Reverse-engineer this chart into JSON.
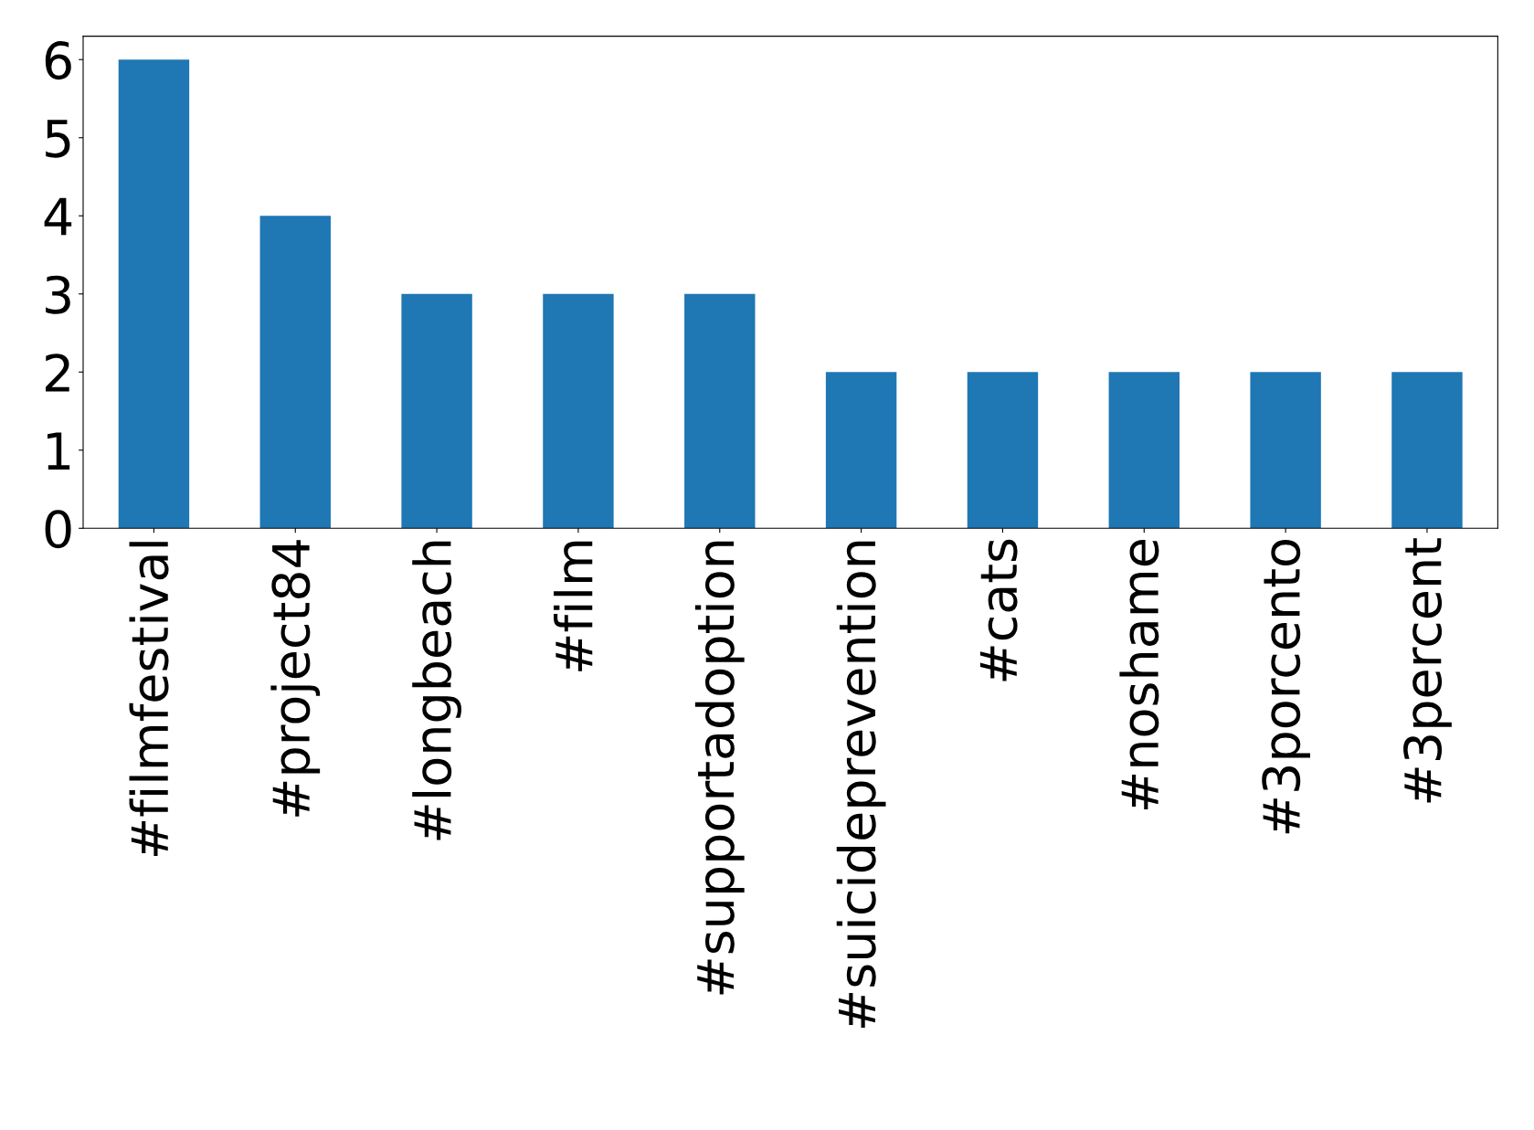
{
  "chart_data": {
    "type": "bar",
    "categories": [
      "#filmfestival",
      "#project84",
      "#longbeach",
      "#film",
      "#supportadoption",
      "#suicideprevention",
      "#cats",
      "#noshame",
      "#3porcento",
      "#3percent"
    ],
    "values": [
      6,
      4,
      3,
      3,
      3,
      2,
      2,
      2,
      2,
      2
    ],
    "color": "#1f77b4",
    "ylim": [
      0,
      6.3
    ],
    "yticks": [
      0,
      1,
      2,
      3,
      4,
      5,
      6
    ],
    "grid": false,
    "legend": false
  }
}
